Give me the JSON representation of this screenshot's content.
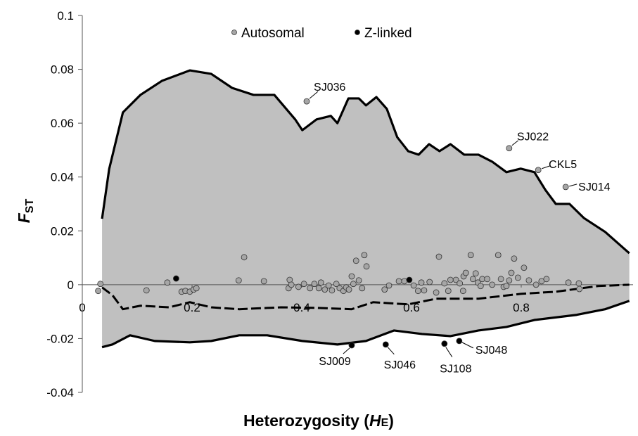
{
  "chart_data": {
    "type": "scatter",
    "xlabel": [
      "Heterozygosity (",
      "H",
      "E",
      ")"
    ],
    "ylabel": {
      "main": "F",
      "sub": "ST"
    },
    "xlim": [
      0,
      1
    ],
    "ylim": [
      -0.04,
      0.1
    ],
    "xticks": [
      0,
      0.2,
      0.4,
      0.6,
      0.8
    ],
    "yticks": [
      -0.04,
      -0.02,
      0,
      0.02,
      0.04,
      0.06,
      0.08,
      0.1
    ],
    "legend": "top",
    "envelope": {
      "color": "#000000",
      "fill": "#c0c0c0",
      "upper": {
        "x": [
          0.036,
          0.049,
          0.074,
          0.106,
          0.145,
          0.196,
          0.235,
          0.273,
          0.312,
          0.35,
          0.388,
          0.401,
          0.427,
          0.453,
          0.465,
          0.485,
          0.504,
          0.517,
          0.536,
          0.555,
          0.574,
          0.594,
          0.613,
          0.632,
          0.651,
          0.671,
          0.696,
          0.722,
          0.747,
          0.773,
          0.799,
          0.824,
          0.844,
          0.863,
          0.888,
          0.914,
          0.953,
          0.997
        ],
        "values": [
          0.0245,
          0.043,
          0.064,
          0.0705,
          0.0757,
          0.0796,
          0.0783,
          0.0731,
          0.0705,
          0.0705,
          0.0614,
          0.0574,
          0.0614,
          0.0627,
          0.06,
          0.0692,
          0.0692,
          0.0666,
          0.0697,
          0.0653,
          0.0548,
          0.0496,
          0.0483,
          0.0522,
          0.0496,
          0.0522,
          0.0483,
          0.0483,
          0.0457,
          0.0418,
          0.0431,
          0.0418,
          0.0352,
          0.03,
          0.03,
          0.0248,
          0.0196,
          0.0117
        ]
      },
      "lower": {
        "x": [
          0.036,
          0.055,
          0.087,
          0.132,
          0.196,
          0.235,
          0.286,
          0.337,
          0.401,
          0.465,
          0.517,
          0.568,
          0.619,
          0.671,
          0.722,
          0.773,
          0.824,
          0.901,
          0.953,
          0.997
        ],
        "values": [
          -0.0232,
          -0.0222,
          -0.0188,
          -0.0209,
          -0.0214,
          -0.0209,
          -0.0188,
          -0.0188,
          -0.0209,
          -0.0222,
          -0.0209,
          -0.017,
          -0.0183,
          -0.0191,
          -0.017,
          -0.0157,
          -0.0131,
          -0.0112,
          -0.0091,
          -0.006
        ]
      },
      "median": {
        "x": [
          0.036,
          0.055,
          0.074,
          0.106,
          0.158,
          0.196,
          0.235,
          0.286,
          0.362,
          0.427,
          0.491,
          0.53,
          0.594,
          0.645,
          0.722,
          0.799,
          0.863,
          0.94,
          0.997
        ],
        "values": [
          -0.001,
          -0.0039,
          -0.0091,
          -0.0078,
          -0.0084,
          -0.0065,
          -0.0084,
          -0.0091,
          -0.0084,
          -0.0086,
          -0.0091,
          -0.0065,
          -0.0073,
          -0.0052,
          -0.0052,
          -0.0034,
          -0.0026,
          -0.0005,
          0
        ]
      }
    },
    "series": [
      {
        "name": "Autosomal",
        "color": "#a6a6a6",
        "x": [
          0.409,
          0.778,
          0.831,
          0.881,
          0.029,
          0.033,
          0.117,
          0.155,
          0.181,
          0.188,
          0.196,
          0.203,
          0.208,
          0.285,
          0.295,
          0.331,
          0.376,
          0.378,
          0.381,
          0.394,
          0.404,
          0.415,
          0.423,
          0.431,
          0.435,
          0.442,
          0.449,
          0.455,
          0.463,
          0.469,
          0.476,
          0.481,
          0.486,
          0.491,
          0.494,
          0.499,
          0.504,
          0.51,
          0.514,
          0.518,
          0.551,
          0.559,
          0.577,
          0.587,
          0.604,
          0.612,
          0.618,
          0.623,
          0.633,
          0.645,
          0.65,
          0.66,
          0.667,
          0.671,
          0.681,
          0.688,
          0.695,
          0.694,
          0.699,
          0.708,
          0.712,
          0.717,
          0.721,
          0.726,
          0.729,
          0.738,
          0.747,
          0.758,
          0.763,
          0.768,
          0.773,
          0.778,
          0.782,
          0.787,
          0.794,
          0.805,
          0.814,
          0.827,
          0.837,
          0.846,
          0.886,
          0.905,
          0.906
        ],
        "values": [
          0.0681,
          0.0507,
          0.0426,
          0.0363,
          -0.0023,
          0.0003,
          -0.0021,
          0.0008,
          -0.0026,
          -0.0023,
          -0.0026,
          -0.0018,
          -0.0013,
          0.0016,
          0.0102,
          0.0013,
          -0.0013,
          0.0018,
          0,
          -0.0008,
          0.0003,
          -0.0013,
          0.0003,
          -0.0013,
          0.0008,
          -0.0018,
          -0.0003,
          -0.0021,
          0.0003,
          -0.0013,
          -0.0023,
          -0.001,
          -0.0018,
          0.0031,
          0.0003,
          0.0089,
          0.0016,
          -0.0013,
          0.011,
          0.0068,
          -0.0018,
          -0.0003,
          0.0013,
          0.0013,
          -0.0003,
          -0.0023,
          0.0008,
          -0.0021,
          0.001,
          -0.0029,
          0.0104,
          0.0005,
          -0.0023,
          0.0018,
          0.0018,
          0.0005,
          0.0031,
          -0.0023,
          0.0044,
          0.011,
          0.0021,
          0.0042,
          0.0008,
          -0.0005,
          0.0021,
          0.0021,
          0,
          0.011,
          0.0021,
          -0.0008,
          -0.0005,
          0.0016,
          0.0044,
          0.0097,
          0.0026,
          0.0063,
          0.0016,
          0,
          0.0013,
          0.0021,
          0.0008,
          0.0005,
          -0.0016
        ],
        "point_labels": [
          "SJ036",
          "SJ022",
          "CKL5",
          "SJ014",
          null,
          null,
          null,
          null,
          null,
          null,
          null,
          null,
          null,
          null,
          null,
          null,
          null,
          null,
          null,
          null,
          null,
          null,
          null,
          null,
          null,
          null,
          null,
          null,
          null,
          null,
          null,
          null,
          null,
          null,
          null,
          null,
          null,
          null,
          null,
          null,
          null,
          null,
          null,
          null,
          null,
          null,
          null,
          null,
          null,
          null,
          null,
          null,
          null,
          null,
          null,
          null,
          null,
          null,
          null,
          null,
          null,
          null,
          null,
          null,
          null,
          null,
          null,
          null,
          null,
          null,
          null,
          null,
          null,
          null,
          null,
          null,
          null,
          null,
          null,
          null,
          null,
          null,
          null
        ]
      },
      {
        "name": "Z-linked",
        "color": "#000000",
        "x": [
          0.491,
          0.553,
          0.66,
          0.687,
          0.171,
          0.596
        ],
        "values": [
          -0.0225,
          -0.0222,
          -0.0219,
          -0.0209,
          0.0023,
          0.0018
        ],
        "point_labels": [
          "SJ009",
          "SJ046",
          "SJ108",
          "SJ048",
          null,
          null
        ]
      }
    ]
  }
}
